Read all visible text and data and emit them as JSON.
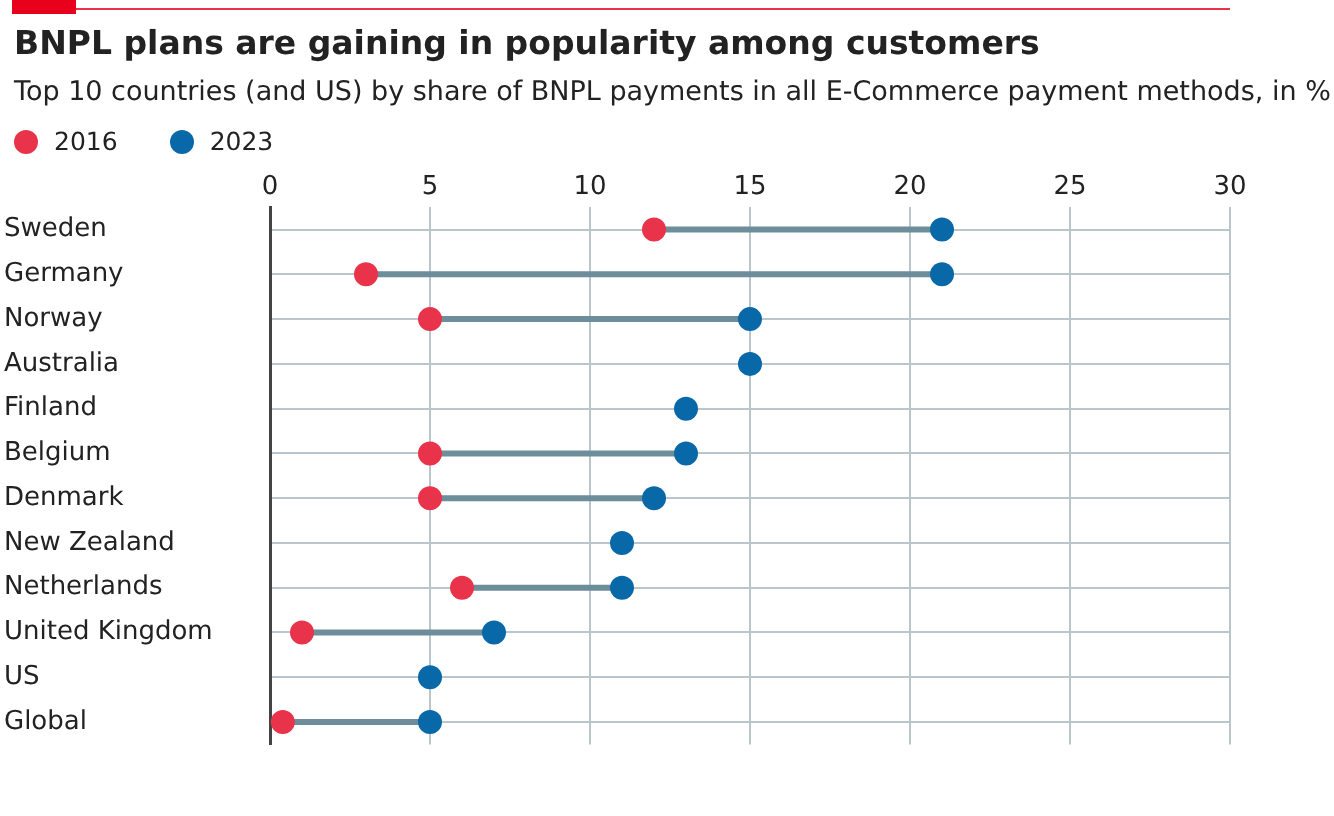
{
  "chart_data": {
    "type": "scatter",
    "orientation": "horizontal",
    "title": "BNPL plans are gaining in popularity among customers",
    "subtitle": "Top 10 countries (and US) by share of BNPL payments in all E-Commerce payment methods, in %",
    "categories": [
      "Sweden",
      "Germany",
      "Norway",
      "Australia",
      "Finland",
      "Belgium",
      "Denmark",
      "New Zealand",
      "Netherlands",
      "United Kingdom",
      "US",
      "Global"
    ],
    "series": [
      {
        "name": "2016",
        "color": "#e8334a",
        "values": [
          12,
          3,
          5,
          null,
          null,
          5,
          5,
          null,
          6,
          1,
          null,
          0.4
        ]
      },
      {
        "name": "2023",
        "color": "#0868a8",
        "values": [
          21,
          21,
          15,
          15,
          13,
          13,
          12,
          11,
          11,
          7,
          5,
          5
        ]
      }
    ],
    "xlim": [
      0,
      30
    ],
    "xticks": [
      0,
      5,
      10,
      15,
      20,
      25,
      30
    ],
    "grid": true,
    "legend": "top left",
    "marker": "circle"
  }
}
